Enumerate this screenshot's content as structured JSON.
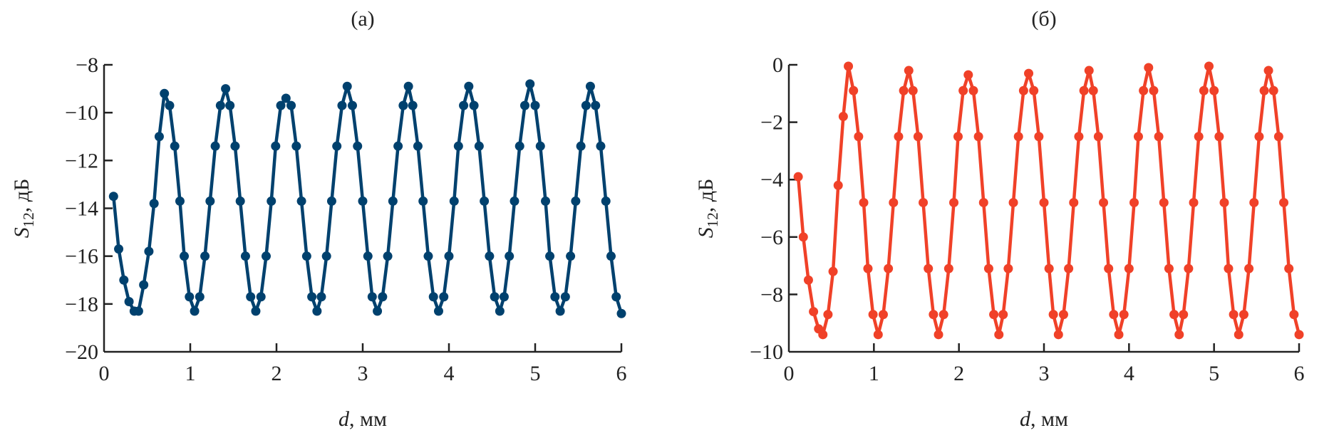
{
  "chart_data": [
    {
      "type": "line",
      "title": "(а)",
      "xlabel_var": "d",
      "xlabel_unit": ", мм",
      "ylabel_var": "S",
      "ylabel_sub": "12",
      "ylabel_unit": ", дБ",
      "xlim": [
        0,
        6
      ],
      "ylim": [
        -20,
        -8
      ],
      "xticks": [
        0,
        1,
        2,
        3,
        4,
        5,
        6
      ],
      "yticks": [
        -20,
        -18,
        -16,
        -14,
        -12,
        -10,
        -8
      ],
      "grid": false,
      "markers": true,
      "color": "#00416e",
      "x": [
        0.11,
        0.17,
        0.23,
        0.29,
        0.35,
        0.4,
        0.46,
        0.52,
        0.58,
        0.64,
        0.7,
        0.76,
        0.82,
        0.88,
        0.93,
        0.99,
        1.05,
        1.11,
        1.17,
        1.23,
        1.29,
        1.35,
        1.41,
        1.46,
        1.52,
        1.58,
        1.64,
        1.7,
        1.76,
        1.82,
        1.88,
        1.94,
        1.99,
        2.05,
        2.11,
        2.17,
        2.23,
        2.29,
        2.35,
        2.41,
        2.47,
        2.52,
        2.58,
        2.64,
        2.7,
        2.76,
        2.82,
        2.88,
        2.94,
        3.0,
        3.06,
        3.11,
        3.17,
        3.23,
        3.29,
        3.35,
        3.41,
        3.47,
        3.53,
        3.58,
        3.64,
        3.7,
        3.76,
        3.82,
        3.88,
        3.94,
        4.0,
        4.06,
        4.11,
        4.17,
        4.23,
        4.29,
        4.35,
        4.41,
        4.47,
        4.53,
        4.59,
        4.64,
        4.7,
        4.76,
        4.82,
        4.88,
        4.94,
        5.0,
        5.06,
        5.12,
        5.17,
        5.23,
        5.29,
        5.35,
        5.41,
        5.47,
        5.53,
        5.59,
        5.64,
        5.7,
        5.76,
        5.82,
        5.88,
        5.94,
        6.0
      ],
      "y": [
        -13.5,
        -15.7,
        -17.0,
        -17.9,
        -18.3,
        -18.3,
        -17.2,
        -15.8,
        -13.8,
        -11.0,
        -9.2,
        -9.7,
        -11.4,
        -13.7,
        -16.0,
        -17.7,
        -18.3,
        -17.7,
        -16.0,
        -13.7,
        -11.4,
        -9.7,
        -9.0,
        -9.7,
        -11.4,
        -13.7,
        -16.0,
        -17.7,
        -18.3,
        -17.7,
        -16.0,
        -13.7,
        -11.4,
        -9.7,
        -9.4,
        -9.7,
        -11.4,
        -13.7,
        -16.0,
        -17.7,
        -18.3,
        -17.7,
        -16.0,
        -13.7,
        -11.4,
        -9.7,
        -8.9,
        -9.7,
        -11.4,
        -13.7,
        -16.0,
        -17.7,
        -18.3,
        -17.7,
        -16.0,
        -13.7,
        -11.4,
        -9.7,
        -8.9,
        -9.7,
        -11.4,
        -13.7,
        -16.0,
        -17.7,
        -18.3,
        -17.7,
        -16.0,
        -13.7,
        -11.4,
        -9.7,
        -8.9,
        -9.7,
        -11.4,
        -13.7,
        -16.0,
        -17.7,
        -18.3,
        -17.7,
        -16.0,
        -13.7,
        -11.4,
        -9.7,
        -8.8,
        -9.7,
        -11.4,
        -13.7,
        -16.0,
        -17.7,
        -18.3,
        -17.7,
        -16.0,
        -13.7,
        -11.4,
        -9.7,
        -8.9,
        -9.7,
        -11.4,
        -13.7,
        -16.0,
        -17.7,
        -18.4
      ]
    },
    {
      "type": "line",
      "title": "(б)",
      "xlabel_var": "d",
      "xlabel_unit": ", мм",
      "ylabel_var": "S",
      "ylabel_sub": "12",
      "ylabel_unit": ", дБ",
      "xlim": [
        0,
        6
      ],
      "ylim": [
        -10,
        0
      ],
      "xticks": [
        0,
        1,
        2,
        3,
        4,
        5,
        6
      ],
      "yticks": [
        -10,
        -8,
        -6,
        -4,
        -2,
        0
      ],
      "grid": false,
      "markers": true,
      "color": "#f04128",
      "x": [
        0.11,
        0.17,
        0.23,
        0.29,
        0.35,
        0.4,
        0.46,
        0.52,
        0.58,
        0.64,
        0.7,
        0.76,
        0.82,
        0.88,
        0.93,
        0.99,
        1.05,
        1.11,
        1.17,
        1.23,
        1.29,
        1.35,
        1.41,
        1.46,
        1.52,
        1.58,
        1.64,
        1.7,
        1.76,
        1.82,
        1.88,
        1.94,
        1.99,
        2.05,
        2.11,
        2.17,
        2.23,
        2.29,
        2.35,
        2.41,
        2.47,
        2.52,
        2.58,
        2.64,
        2.7,
        2.76,
        2.82,
        2.88,
        2.94,
        3.0,
        3.06,
        3.11,
        3.17,
        3.23,
        3.29,
        3.35,
        3.41,
        3.47,
        3.53,
        3.58,
        3.64,
        3.7,
        3.76,
        3.82,
        3.88,
        3.94,
        4.0,
        4.06,
        4.11,
        4.17,
        4.23,
        4.29,
        4.35,
        4.41,
        4.47,
        4.53,
        4.59,
        4.64,
        4.7,
        4.76,
        4.82,
        4.88,
        4.94,
        5.0,
        5.06,
        5.12,
        5.17,
        5.23,
        5.29,
        5.35,
        5.41,
        5.47,
        5.53,
        5.59,
        5.64,
        5.7,
        5.76,
        5.82,
        5.88,
        5.94,
        6.0
      ],
      "y": [
        -3.9,
        -6.0,
        -7.5,
        -8.6,
        -9.2,
        -9.4,
        -8.7,
        -7.2,
        -4.2,
        -1.8,
        -0.05,
        -0.9,
        -2.5,
        -4.8,
        -7.1,
        -8.7,
        -9.4,
        -8.7,
        -7.1,
        -4.8,
        -2.5,
        -0.9,
        -0.2,
        -0.9,
        -2.5,
        -4.8,
        -7.1,
        -8.7,
        -9.4,
        -8.7,
        -7.1,
        -4.8,
        -2.5,
        -0.9,
        -0.35,
        -0.9,
        -2.5,
        -4.8,
        -7.1,
        -8.7,
        -9.4,
        -8.7,
        -7.1,
        -4.8,
        -2.5,
        -0.9,
        -0.3,
        -0.9,
        -2.5,
        -4.8,
        -7.1,
        -8.7,
        -9.4,
        -8.7,
        -7.1,
        -4.8,
        -2.5,
        -0.9,
        -0.2,
        -0.9,
        -2.5,
        -4.8,
        -7.1,
        -8.7,
        -9.4,
        -8.7,
        -7.1,
        -4.8,
        -2.5,
        -0.9,
        -0.1,
        -0.9,
        -2.5,
        -4.8,
        -7.1,
        -8.7,
        -9.4,
        -8.7,
        -7.1,
        -4.8,
        -2.5,
        -0.9,
        -0.05,
        -0.9,
        -2.5,
        -4.8,
        -7.1,
        -8.7,
        -9.4,
        -8.7,
        -7.1,
        -4.8,
        -2.5,
        -0.9,
        -0.2,
        -0.9,
        -2.5,
        -4.8,
        -7.1,
        -8.7,
        -9.4
      ]
    }
  ]
}
